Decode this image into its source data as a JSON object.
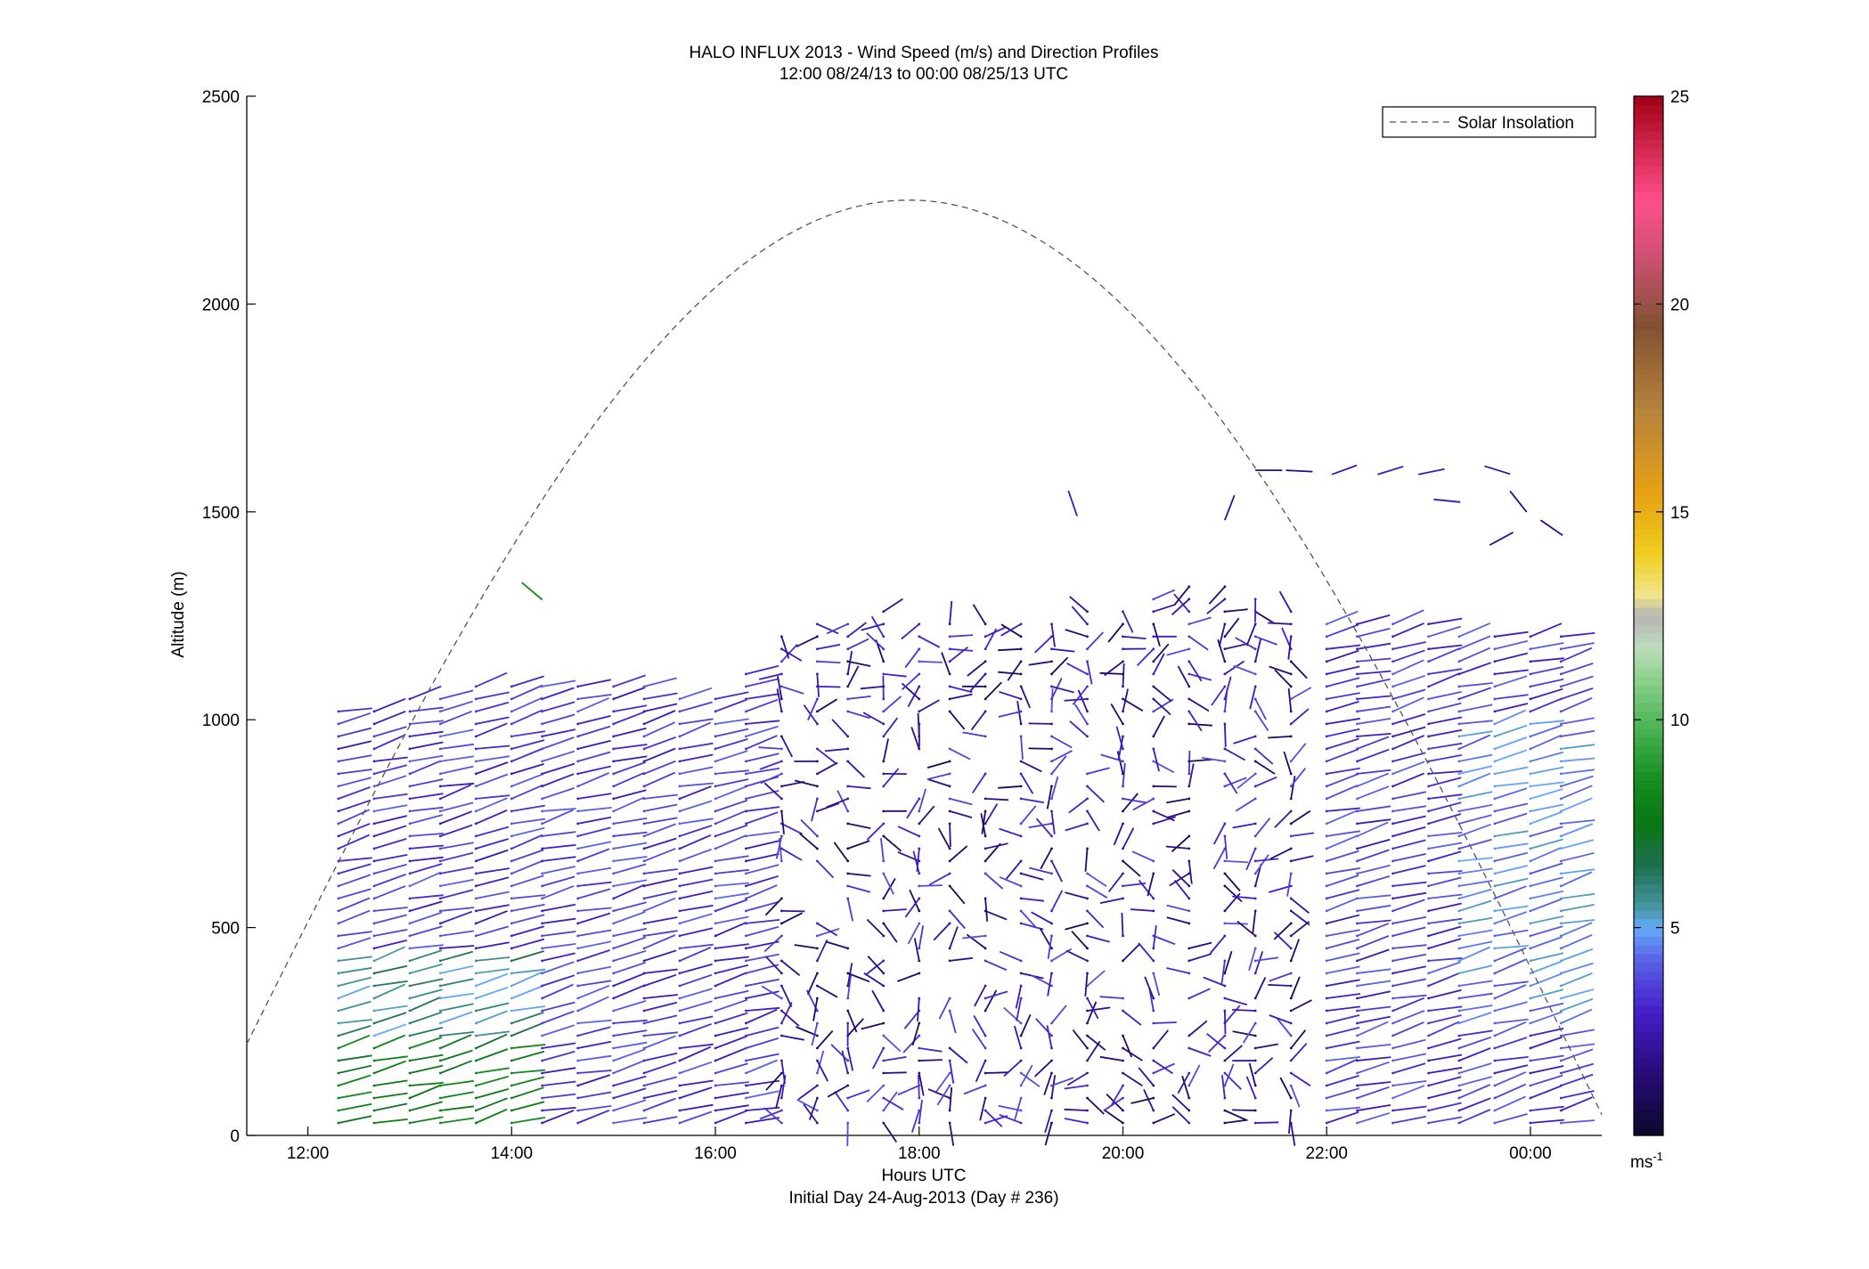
{
  "chart_data": {
    "type": "wind-barb profile",
    "title": "HALO INFLUX 2013 - Wind Speed (m/s) and Direction Profiles",
    "subtitle": "12:00 08/24/13 to 00:00 08/25/13  UTC",
    "xlabel": "Hours UTC",
    "xlabel2": "Initial Day 24-Aug-2013 (Day # 236)",
    "ylabel": "Altitude (m)",
    "xlim": [
      11.4,
      24.7
    ],
    "ylim": [
      0,
      2500
    ],
    "xticks": [
      12,
      14,
      16,
      18,
      20,
      22,
      24
    ],
    "xtick_labels": [
      "12:00",
      "14:00",
      "16:00",
      "18:00",
      "20:00",
      "22:00",
      "00:00"
    ],
    "yticks": [
      0,
      500,
      1000,
      1500,
      2000,
      2500
    ],
    "ytick_labels": [
      "0",
      "500",
      "1000",
      "1500",
      "2000",
      "2500"
    ],
    "legend": {
      "label": "Solar Insolation",
      "position": "top-right"
    },
    "colorbar": {
      "min": 0,
      "max": 25,
      "ticks": [
        5,
        10,
        15,
        20,
        25
      ],
      "tick_labels": [
        "5",
        "10",
        "15",
        "20",
        "25"
      ],
      "unit_label": "ms",
      "unit_exponent": "-1"
    },
    "solar_insolation": {
      "start_hour": 11.4,
      "start_altitude": 220,
      "peak_hour": 17.9,
      "peak_altitude": 2250,
      "end_hour": 24.7,
      "end_altitude": 50
    },
    "profile_times": [
      12.3,
      12.65,
      13.0,
      13.3,
      13.65,
      14.0,
      14.3,
      14.65,
      15.0,
      15.3,
      15.65,
      16.0,
      16.3,
      16.65,
      17.0,
      17.3,
      17.65,
      18.0,
      18.3,
      18.65,
      19.0,
      19.3,
      19.65,
      20.0,
      20.3,
      20.65,
      21.0,
      21.3,
      21.65,
      22.0,
      22.3,
      22.65,
      23.0,
      23.3,
      23.65,
      24.0,
      24.3
    ],
    "profile_tops": [
      1020,
      1040,
      1050,
      1070,
      1090,
      1100,
      1100,
      1090,
      1080,
      1080,
      1070,
      1060,
      1120,
      1200,
      1230,
      1250,
      1260,
      1250,
      1240,
      1240,
      1230,
      1240,
      1260,
      1280,
      1300,
      1320,
      1320,
      1300,
      1280,
      1250,
      1250,
      1240,
      1230,
      1220,
      1200,
      1200,
      1200
    ],
    "bin_spacing_m": 30
  }
}
